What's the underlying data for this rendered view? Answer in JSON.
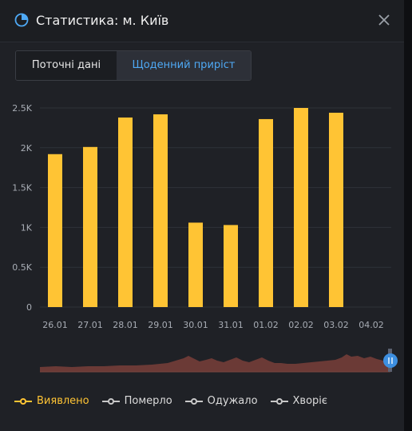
{
  "header": {
    "title": "Статистика: м. Київ",
    "icon": "pie-chart-icon",
    "close_icon": "close-icon"
  },
  "tabs": [
    {
      "label": "Поточні дані",
      "active": false
    },
    {
      "label": "Щоденний приріст",
      "active": true
    }
  ],
  "colors": {
    "accent": "#4ea9f5",
    "bar": "#ffc434",
    "grid": "#2f3238",
    "navigator": "#6b3a36",
    "handle": "#3d8fe0"
  },
  "chart_data": {
    "type": "bar",
    "categories": [
      "26.01",
      "27.01",
      "28.01",
      "29.01",
      "30.01",
      "31.01",
      "01.02",
      "02.02",
      "03.02",
      "04.02"
    ],
    "series": [
      {
        "name": "Виявлено",
        "values": [
          1920,
          2010,
          2380,
          2420,
          1060,
          1030,
          2360,
          2500,
          2440,
          null
        ]
      }
    ],
    "y_ticks": [
      "0",
      "0.5K",
      "1K",
      "1.5K",
      "2K",
      "2.5K"
    ],
    "ylim": [
      0,
      2500
    ],
    "grid": true,
    "legend_position": "bottom-left"
  },
  "legend": [
    {
      "label": "Виявлено",
      "color": "#ffc434"
    },
    {
      "label": "Померло",
      "color": "#c8c8c8"
    },
    {
      "label": "Одужало",
      "color": "#c8c8c8"
    },
    {
      "label": "Хворіє",
      "color": "#c8c8c8"
    }
  ]
}
